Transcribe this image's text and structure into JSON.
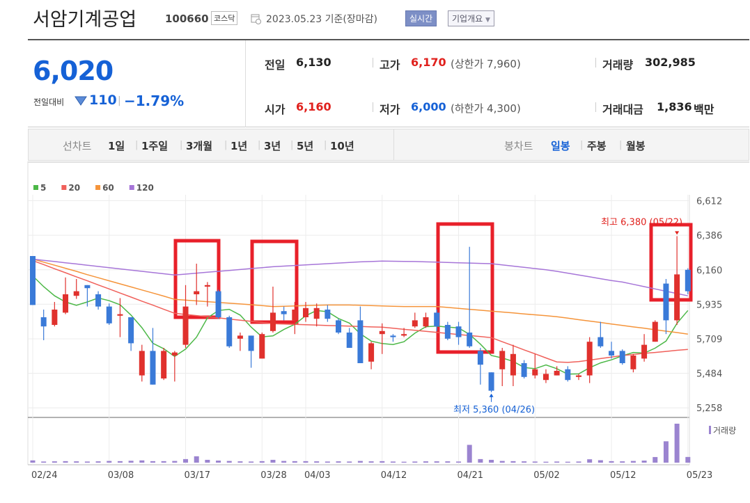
{
  "header": {
    "title": "서암기계공업",
    "code": "100660",
    "market": "코스닥",
    "date": "2023.05.23 기준(장마감)",
    "buttons": [
      "실시간",
      "기업개요"
    ]
  },
  "summary": {
    "price": "6,020",
    "change_label": "전일대비",
    "change": "110",
    "change_rate": "−1.79%",
    "stats": [
      {
        "label": "전일",
        "value": "6,130"
      },
      {
        "label": "고가",
        "value": "6,170",
        "note": "(상한가 7,960)"
      },
      {
        "label": "거래량",
        "value": "302,985"
      },
      {
        "label": "시가",
        "value": "6,160"
      },
      {
        "label": "저가",
        "value": "6,000",
        "note": "(하한가 4,300)"
      },
      {
        "label": "거래대금",
        "value": "1,836",
        "unit": "백만"
      }
    ]
  },
  "tabs": {
    "line_label": "선차트",
    "line_periods": [
      "1일",
      "1주일",
      "3개월",
      "1년",
      "3년",
      "5년",
      "10년"
    ],
    "candle_label": "봉차트",
    "candle_periods": [
      "일봉",
      "주봉",
      "월봉"
    ]
  },
  "chart_data": {
    "type": "candlestick",
    "categories": [
      "02/24",
      null,
      null,
      null,
      null,
      null,
      null,
      "03/08",
      null,
      null,
      null,
      null,
      null,
      null,
      "03/17",
      null,
      null,
      null,
      null,
      null,
      null,
      "03/28",
      null,
      null,
      null,
      "04/03",
      null,
      null,
      null,
      null,
      null,
      null,
      "04/12",
      null,
      null,
      null,
      null,
      null,
      null,
      "04/21",
      null,
      null,
      null,
      null,
      null,
      null,
      "05/02",
      null,
      null,
      null,
      null,
      null,
      null,
      "05/12",
      null,
      null,
      null,
      null,
      null,
      null,
      "05/23"
    ],
    "open": [
      6250,
      5850,
      5800,
      5880,
      5990,
      6060,
      6000,
      5920,
      5860,
      5850,
      5470,
      5630,
      5450,
      5600,
      5670,
      6000,
      6050,
      6020,
      5850,
      5710,
      5730,
      5580,
      5760,
      5890,
      5830,
      5850,
      5840,
      5900,
      5830,
      5750,
      5830,
      5560,
      5740,
      5730,
      5730,
      5790,
      5790,
      5880,
      5800,
      5790,
      5750,
      5630,
      5490,
      5510,
      5470,
      5550,
      5470,
      5440,
      5470,
      5510,
      5460,
      5470,
      5720,
      5630,
      5630,
      5510,
      5580,
      5690,
      6070,
      5830,
      6160
    ],
    "high": [
      6250,
      5900,
      5950,
      6110,
      6100,
      6060,
      6020,
      5940,
      5975,
      5850,
      5670,
      5780,
      5650,
      5630,
      6060,
      6200,
      6080,
      6030,
      5860,
      5750,
      5730,
      5750,
      6050,
      5920,
      5950,
      5950,
      5940,
      5930,
      5840,
      5780,
      5920,
      5690,
      5810,
      5740,
      5780,
      5880,
      5880,
      5900,
      5820,
      5820,
      6310,
      5650,
      5490,
      5650,
      5670,
      5570,
      5610,
      5510,
      5530,
      5530,
      5480,
      5720,
      5820,
      5690,
      5640,
      5610,
      5740,
      5830,
      6100,
      6380,
      6170
    ],
    "low": [
      5930,
      5700,
      5790,
      5870,
      5970,
      5920,
      5900,
      5800,
      5720,
      5630,
      5430,
      5410,
      5440,
      5430,
      5650,
      5930,
      5920,
      5840,
      5650,
      5630,
      5520,
      5580,
      5750,
      5830,
      5740,
      5820,
      5790,
      5820,
      5740,
      5650,
      5550,
      5510,
      5610,
      5690,
      5720,
      5780,
      5780,
      5760,
      5700,
      5670,
      5650,
      5410,
      5360,
      5400,
      5400,
      5450,
      5450,
      5420,
      5470,
      5430,
      5440,
      5420,
      5650,
      5580,
      5540,
      5490,
      5560,
      5690,
      5740,
      5800,
      6000
    ],
    "close": [
      5930,
      5790,
      5900,
      6000,
      6020,
      6040,
      5920,
      5810,
      5870,
      5680,
      5630,
      5410,
      5630,
      5620,
      5920,
      6020,
      6060,
      5850,
      5660,
      5730,
      5630,
      5740,
      5880,
      5870,
      5900,
      5910,
      5910,
      5840,
      5750,
      5650,
      5550,
      5680,
      5760,
      5720,
      5740,
      5830,
      5850,
      5790,
      5710,
      5720,
      5660,
      5540,
      5370,
      5630,
      5610,
      5460,
      5510,
      5480,
      5500,
      5440,
      5470,
      5690,
      5660,
      5600,
      5550,
      5600,
      5670,
      5820,
      5830,
      6130,
      6020
    ],
    "up_color": "#e0312d",
    "down_color": "#3a7ad8",
    "series": [
      {
        "name": "5",
        "color": "#4cb847",
        "values": [
          6120,
          6050,
          5990,
          5950,
          5928,
          5950,
          5976,
          5958,
          5932,
          5864,
          5782,
          5680,
          5644,
          5594,
          5642,
          5720,
          5846,
          5894,
          5902,
          5864,
          5786,
          5722,
          5728,
          5770,
          5804,
          5860,
          5894,
          5886,
          5842,
          5812,
          5742,
          5694,
          5678,
          5672,
          5690,
          5746,
          5788,
          5792,
          5786,
          5780,
          5738,
          5674,
          5600,
          5584,
          5562,
          5522,
          5514,
          5538,
          5514,
          5478,
          5480,
          5520,
          5552,
          5572,
          5598,
          5620,
          5616,
          5648,
          5694,
          5810,
          5894
        ]
      },
      {
        "name": "20",
        "color": "#f0605a",
        "values": [
          6220,
          6194,
          6167,
          6141,
          6114,
          6088,
          6061,
          6035,
          6008,
          5982,
          5955,
          5929,
          5902,
          5876,
          5868,
          5861,
          5853,
          5846,
          5838,
          5831,
          5823,
          5816,
          5808,
          5806,
          5803,
          5801,
          5799,
          5796,
          5794,
          5792,
          5790,
          5787,
          5785,
          5778,
          5771,
          5765,
          5758,
          5751,
          5744,
          5737,
          5731,
          5724,
          5717,
          5690,
          5664,
          5637,
          5611,
          5584,
          5558,
          5555,
          5560,
          5570,
          5580,
          5590,
          5600,
          5607,
          5614,
          5620,
          5627,
          5634,
          5640
        ]
      },
      {
        "name": "60",
        "color": "#f5943a",
        "values": [
          6230,
          6210,
          6190,
          6170,
          6150,
          6128,
          6108,
          6088,
          6068,
          6048,
          6028,
          6008,
          5988,
          5967,
          5962,
          5957,
          5952,
          5947,
          5942,
          5937,
          5932,
          5926,
          5920,
          5922,
          5924,
          5926,
          5928,
          5930,
          5930,
          5930,
          5928,
          5926,
          5924,
          5922,
          5920,
          5920,
          5920,
          5920,
          5914,
          5908,
          5902,
          5896,
          5890,
          5884,
          5878,
          5872,
          5866,
          5860,
          5853,
          5844,
          5834,
          5825,
          5816,
          5806,
          5797,
          5787,
          5778,
          5768,
          5759,
          5750,
          5740
        ]
      },
      {
        "name": "120",
        "color": "#a675d8",
        "values": [
          6230,
          6222,
          6214,
          6206,
          6198,
          6190,
          6182,
          6174,
          6166,
          6158,
          6150,
          6142,
          6134,
          6126,
          6132,
          6138,
          6144,
          6150,
          6156,
          6162,
          6168,
          6174,
          6180,
          6184,
          6188,
          6192,
          6196,
          6200,
          6204,
          6208,
          6212,
          6214,
          6217,
          6216,
          6215,
          6214,
          6212,
          6210,
          6208,
          6206,
          6204,
          6202,
          6200,
          6192,
          6184,
          6176,
          6168,
          6160,
          6150,
          6138,
          6126,
          6114,
          6102,
          6090,
          6080,
          6065,
          6050,
          6035,
          6020,
          6005,
          5990
        ]
      }
    ],
    "volume": {
      "name": "거래량",
      "color": "#9b84d0",
      "values": [
        120000,
        60000,
        70000,
        80000,
        70000,
        60000,
        70000,
        90000,
        80000,
        100000,
        120000,
        80000,
        80000,
        90000,
        190000,
        340000,
        150000,
        110000,
        90000,
        70000,
        60000,
        80000,
        150000,
        90000,
        80000,
        80000,
        70000,
        60000,
        70000,
        60000,
        90000,
        70000,
        80000,
        60000,
        50000,
        60000,
        70000,
        70000,
        70000,
        60000,
        950000,
        190000,
        150000,
        90000,
        80000,
        70000,
        60000,
        50000,
        60000,
        50000,
        60000,
        180000,
        130000,
        80000,
        70000,
        90000,
        110000,
        300000,
        1140000,
        2080000,
        302985
      ]
    },
    "ylim": [
      5200,
      6650
    ],
    "yticks": [
      {
        "value": 6612,
        "label": "6,612"
      },
      {
        "value": 6386,
        "label": "6,386"
      },
      {
        "value": 6160,
        "label": "6,160"
      },
      {
        "value": 5935,
        "label": "5,935"
      },
      {
        "value": 5709,
        "label": "5,709"
      },
      {
        "value": 5484,
        "label": "5,484"
      },
      {
        "value": 5258,
        "label": "5,258"
      }
    ],
    "grid": true,
    "annotations": [
      "최고 6,380 (05/22)",
      "최저 5,360 (04/26)"
    ]
  }
}
